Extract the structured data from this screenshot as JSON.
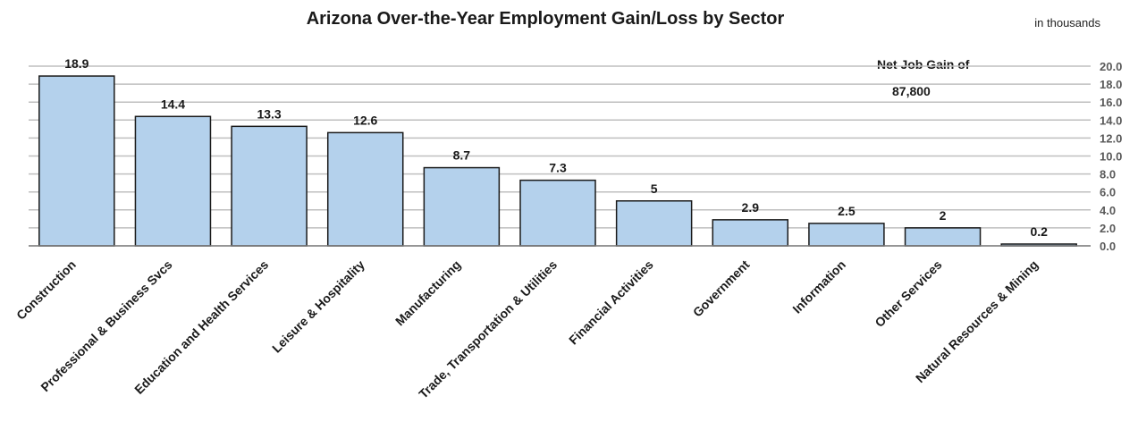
{
  "chart_data": {
    "type": "bar",
    "title": "Arizona Over-the-Year Employment Gain/Loss by Sector",
    "unit_note": "in thousands",
    "annotation_line1": "Net Job Gain of",
    "annotation_line2": "87,800",
    "categories": [
      "Construction",
      "Professional & Business Svcs",
      "Education and Health Services",
      "Leisure & Hospitality",
      "Manufacturing",
      "Trade, Transportation & Utilities",
      "Financial Activities",
      "Government",
      "Information",
      "Other Services",
      "Natural Resources & Mining"
    ],
    "values": [
      18.9,
      14.4,
      13.3,
      12.6,
      8.7,
      7.3,
      5,
      2.9,
      2.5,
      2,
      0.2
    ],
    "value_labels": [
      "18.9",
      "14.4",
      "13.3",
      "12.6",
      "8.7",
      "7.3",
      "5",
      "2.9",
      "2.5",
      "2",
      "0.2"
    ],
    "ylim": [
      0,
      20
    ],
    "y_ticks": [
      "0.0",
      "2.0",
      "4.0",
      "6.0",
      "8.0",
      "10.0",
      "12.0",
      "14.0",
      "16.0",
      "18.0",
      "20.0"
    ],
    "y_axis_side": "right",
    "grid": true,
    "colors": {
      "bar_fill": "#b4d1ec",
      "bar_stroke": "#1a1a1a",
      "grid": "#bfbfbf",
      "tick_text": "#595959"
    }
  }
}
